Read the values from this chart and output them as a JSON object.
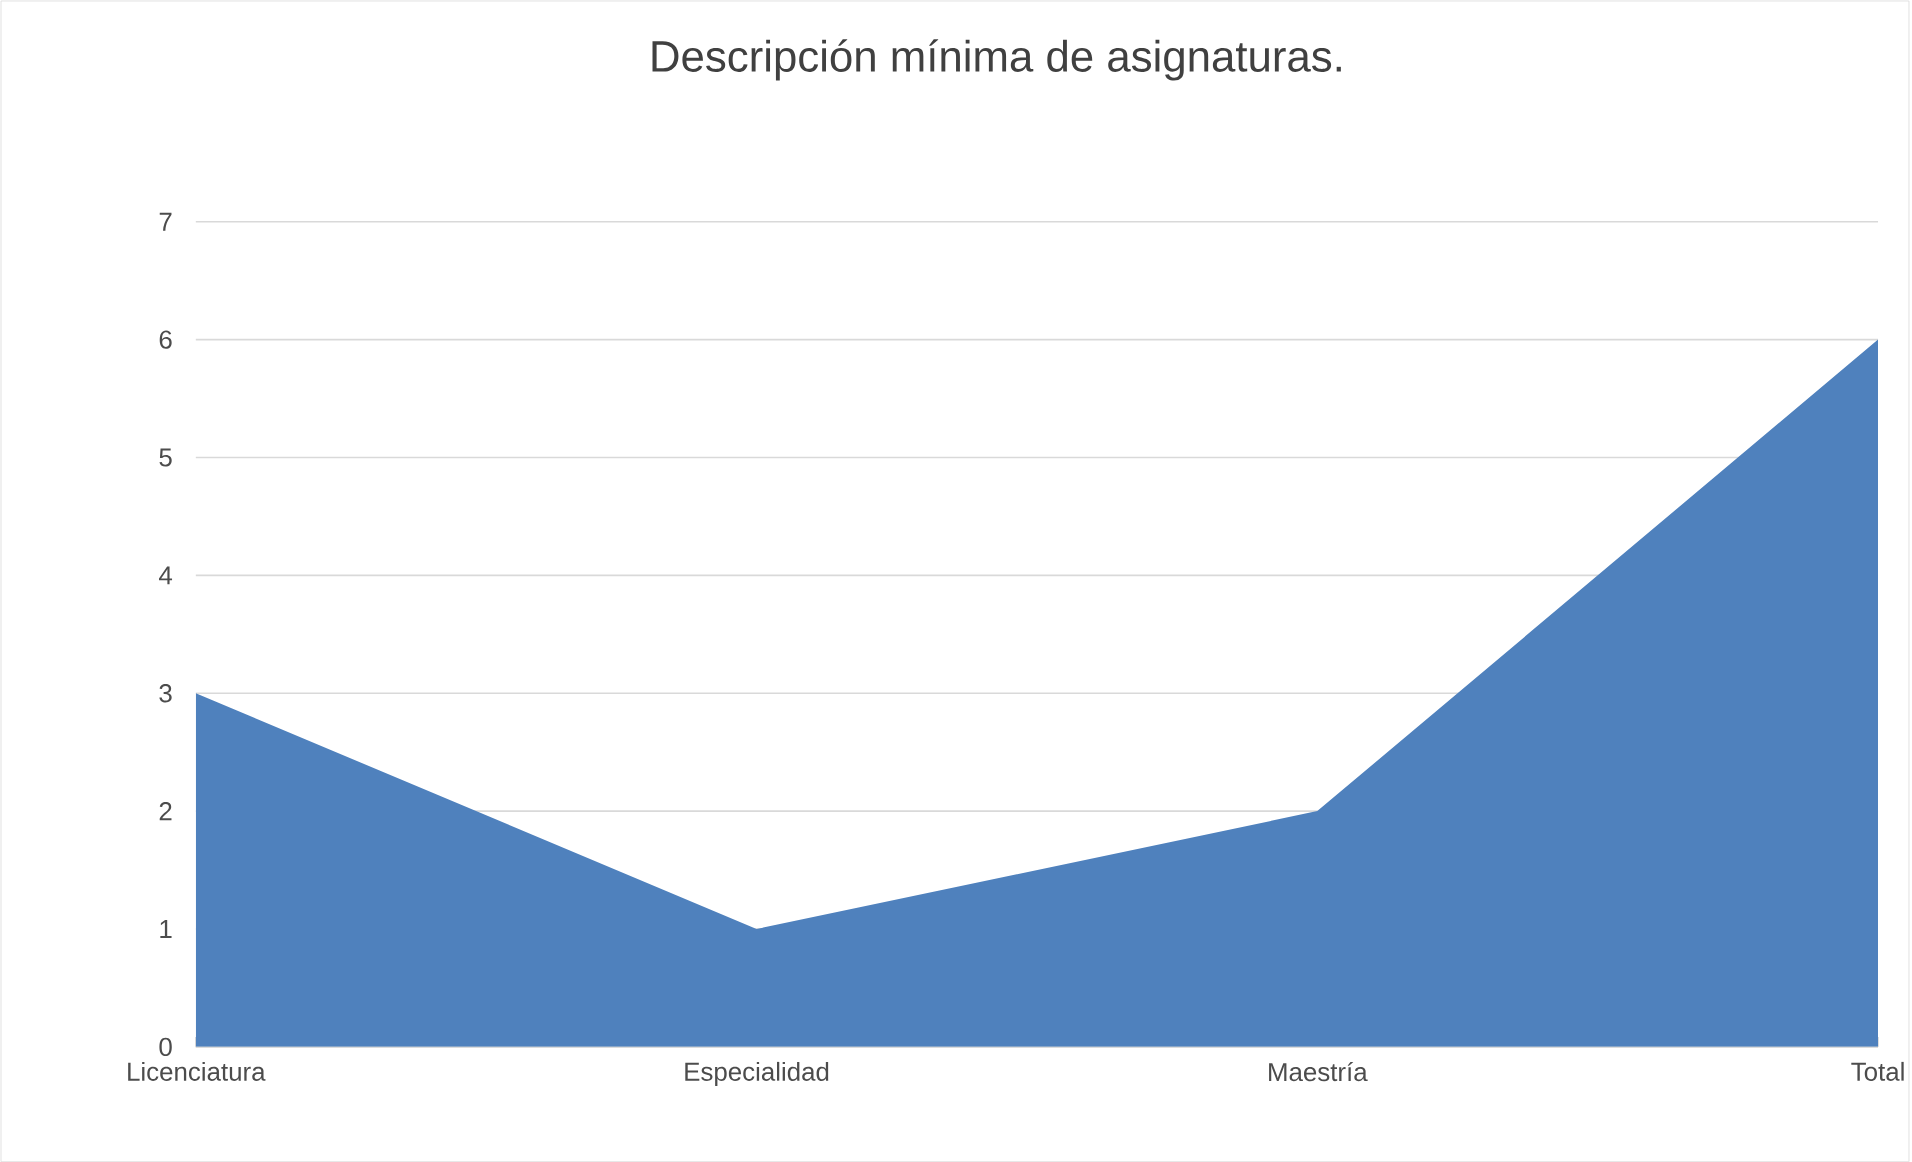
{
  "chart_data": {
    "type": "area",
    "title": "Descripción mínima de asignaturas.",
    "categories": [
      "Licenciatura",
      "Especialidad",
      "Maestría",
      "Total"
    ],
    "values": [
      3,
      1,
      2,
      6
    ],
    "color": "#4f81bd",
    "ylim": [
      0,
      7
    ],
    "yticks": [
      0,
      1,
      2,
      3,
      4,
      5,
      6,
      7
    ],
    "grid": "y"
  }
}
